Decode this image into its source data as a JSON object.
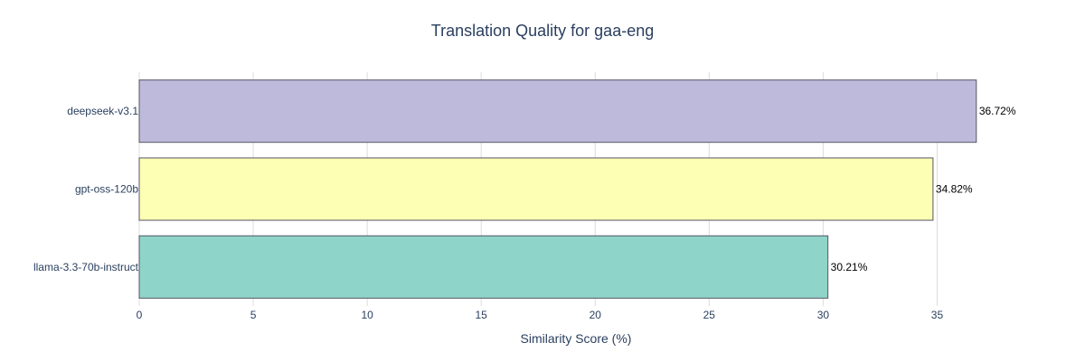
{
  "chart_data": {
    "type": "bar",
    "orientation": "horizontal",
    "title": "Translation Quality for gaa-eng",
    "xlabel": "Similarity Score (%)",
    "ylabel": "",
    "xlim": [
      0,
      37.6
    ],
    "xticks": [
      "0",
      "5",
      "10",
      "15",
      "20",
      "25",
      "30",
      "35"
    ],
    "grid": true,
    "categories": [
      "deepseek-v3.1",
      "gpt-oss-120b",
      "llama-3.3-70b-instruct"
    ],
    "values": [
      36.72,
      34.82,
      30.21
    ],
    "data_labels": [
      "36.72%",
      "34.82%",
      "30.21%"
    ],
    "colors": [
      "#bebadb",
      "#fdffb4",
      "#8fd4c8"
    ],
    "bar_outline_color": "#555566"
  }
}
